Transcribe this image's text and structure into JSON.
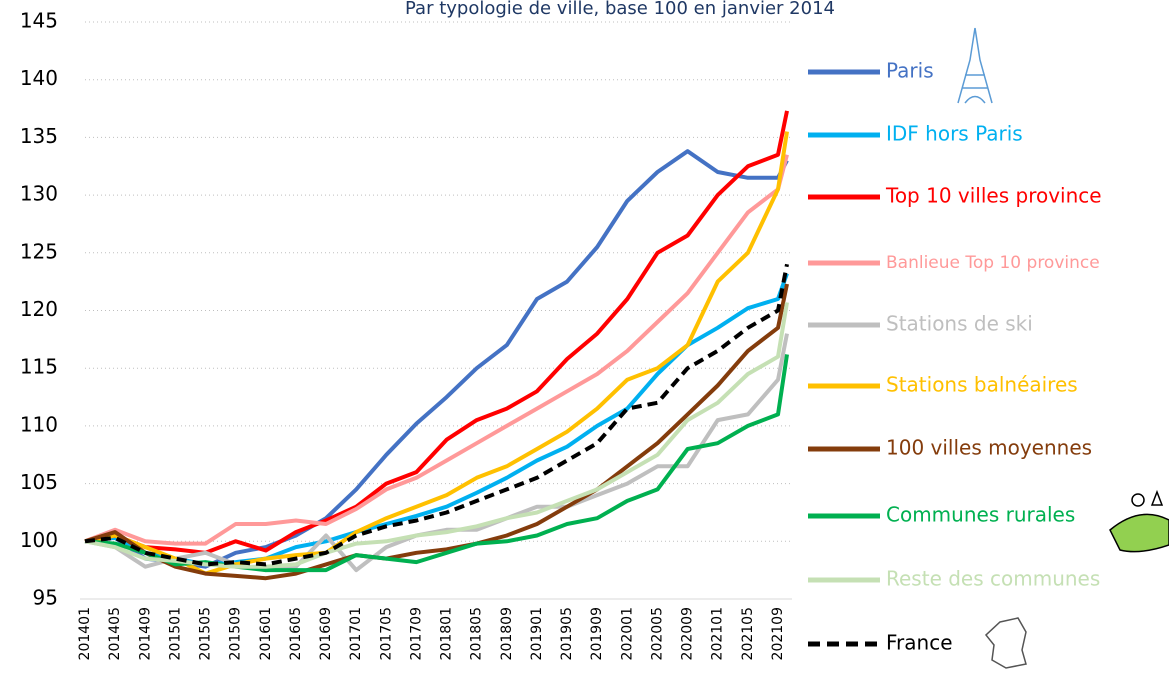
{
  "chart_data": {
    "type": "line",
    "title": "Par typologie de ville, base 100 en janvier 2014",
    "categories": [
      "201401",
      "201405",
      "201409",
      "201501",
      "201505",
      "201509",
      "201601",
      "201605",
      "201609",
      "201701",
      "201705",
      "201709",
      "201801",
      "201805",
      "201809",
      "201901",
      "201905",
      "201909",
      "202001",
      "202005",
      "202009",
      "202101",
      "202105",
      "202109",
      null
    ],
    "ylim": [
      95,
      145
    ],
    "yticks": [
      95,
      100,
      105,
      110,
      115,
      120,
      125,
      130,
      135,
      140,
      145
    ],
    "grid": true,
    "series": [
      {
        "name": "Paris",
        "color": "#4472c4",
        "values": [
          100,
          100.3,
          98.5,
          98.2,
          97.8,
          99,
          99.5,
          100.5,
          102,
          104.5,
          107.5,
          110.2,
          112.5,
          115,
          117,
          121,
          122.5,
          125.5,
          129.5,
          132,
          133.8,
          132,
          131.5,
          131.5,
          133
        ]
      },
      {
        "name": "IDF hors Paris",
        "color": "#00b0f0",
        "values": [
          100,
          100.3,
          99,
          98.5,
          98,
          98.2,
          98.5,
          99.5,
          100,
          100.8,
          101.5,
          102.2,
          103,
          104.2,
          105.5,
          107,
          108.2,
          110,
          111.5,
          114.5,
          117,
          118.5,
          120.2,
          121,
          123.2
        ]
      },
      {
        "name": "Top 10 villes province",
        "color": "#ff0000",
        "values": [
          100,
          100.5,
          99.5,
          99.3,
          99,
          100,
          99.2,
          100.8,
          101.8,
          103,
          105,
          106,
          108.8,
          110.5,
          111.5,
          113,
          115.8,
          118,
          121,
          125,
          126.5,
          130,
          132.5,
          133.5,
          137.3
        ]
      },
      {
        "name": "Banlieue Top 10 province",
        "color": "#ff9999",
        "values": [
          100,
          101,
          100,
          99.8,
          99.8,
          101.5,
          101.5,
          101.8,
          101.5,
          102.8,
          104.5,
          105.5,
          107,
          108.5,
          110,
          111.5,
          113,
          114.5,
          116.5,
          119,
          121.5,
          125,
          128.5,
          130.5,
          133.5
        ]
      },
      {
        "name": "Stations de ski",
        "color": "#bfbfbf",
        "values": [
          100,
          99.5,
          97.8,
          98.5,
          99,
          98,
          97.5,
          97.8,
          100.5,
          97.5,
          99.5,
          100.5,
          101,
          101,
          102,
          103,
          103,
          104,
          105,
          106.5,
          106.5,
          110.5,
          111,
          114,
          118
        ]
      },
      {
        "name": "Stations balnéaires",
        "color": "#ffc000",
        "values": [
          100,
          100.5,
          99.5,
          98.5,
          97.2,
          98,
          98.5,
          98.8,
          99,
          100.8,
          102,
          103,
          104,
          105.5,
          106.5,
          108,
          109.5,
          111.5,
          114,
          115,
          117,
          122.5,
          125,
          130.5,
          135.5
        ]
      },
      {
        "name": "100 villes moyennes",
        "color": "#843c0c",
        "values": [
          100,
          100.8,
          99,
          97.8,
          97.2,
          97,
          96.8,
          97.2,
          98,
          98.8,
          98.5,
          99,
          99.3,
          99.8,
          100.5,
          101.5,
          103,
          104.5,
          106.5,
          108.5,
          111,
          113.5,
          116.5,
          118.5,
          122.3
        ]
      },
      {
        "name": "Communes rurales",
        "color": "#00b050",
        "values": [
          100,
          99.8,
          99,
          98,
          98.2,
          97.8,
          97.5,
          97.5,
          97.5,
          98.8,
          98.5,
          98.2,
          99,
          99.8,
          100,
          100.5,
          101.5,
          102,
          103.5,
          104.5,
          108,
          108.5,
          110,
          111,
          116.2
        ]
      },
      {
        "name": "Reste des communes",
        "color": "#c5e0b4",
        "values": [
          100,
          99.5,
          98.5,
          98.3,
          98,
          97.8,
          97.8,
          98,
          99,
          99.8,
          100,
          100.5,
          100.8,
          101.3,
          102,
          102.5,
          103.5,
          104.5,
          106,
          107.5,
          110.5,
          112,
          114.5,
          116,
          120.7
        ]
      },
      {
        "name": "France",
        "color": "#000000",
        "dashed": true,
        "values": [
          100,
          100.3,
          99,
          98.5,
          98,
          98.2,
          98,
          98.5,
          99,
          100.5,
          101.3,
          101.8,
          102.5,
          103.5,
          104.5,
          105.5,
          107,
          108.5,
          111.5,
          112,
          115,
          116.5,
          118.5,
          120,
          124
        ]
      }
    ]
  }
}
